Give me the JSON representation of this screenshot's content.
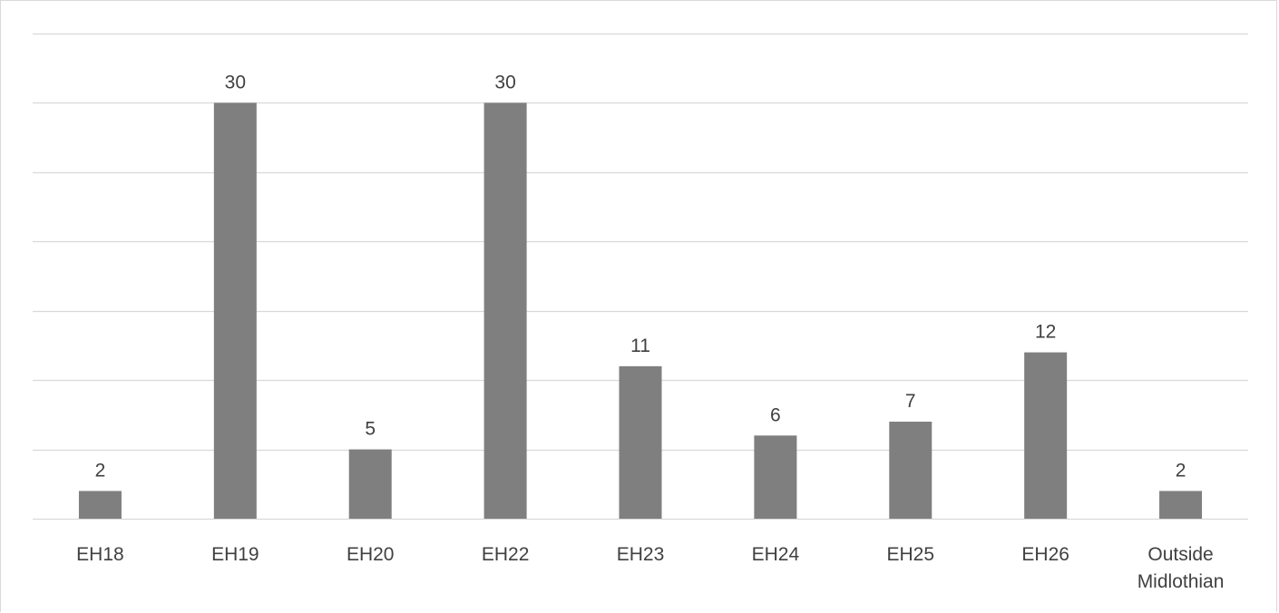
{
  "chart_data": {
    "type": "bar",
    "title": "",
    "xlabel": "",
    "ylabel": "",
    "categories": [
      "EH18",
      "EH19",
      "EH20",
      "EH22",
      "EH23",
      "EH24",
      "EH25",
      "EH26",
      "Outside Midlothian"
    ],
    "values": [
      2,
      30,
      5,
      30,
      11,
      6,
      7,
      12,
      2
    ],
    "ylim": [
      0,
      35
    ],
    "ytick_step": 5,
    "y_tick_labels_visible": false,
    "grid": true,
    "legend": "none",
    "data_labels": true,
    "colors": {
      "bar": "#7f7f7f",
      "grid": "#d9d9d9",
      "text": "#404040"
    }
  }
}
